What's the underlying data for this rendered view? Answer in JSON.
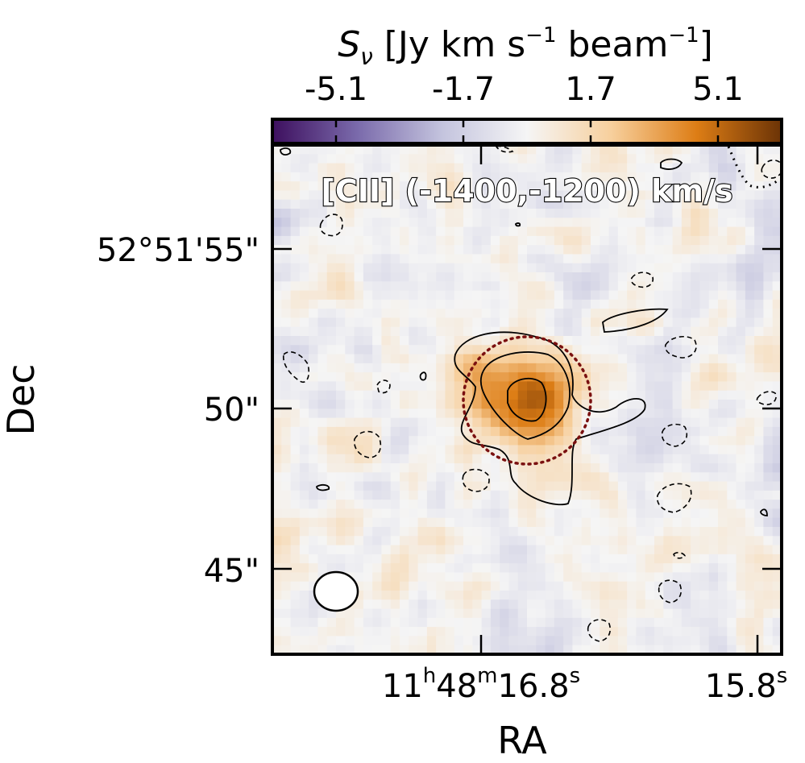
{
  "chart_data": {
    "type": "heatmap",
    "title": "",
    "annotation": "[CII] (-1400,-1200) km/s",
    "xlabel": "RA",
    "ylabel": "Dec",
    "colorbar": {
      "label": "S_ν [Jy km s^-1 beam^-1]",
      "label_main": "S",
      "label_sub": "ν",
      "label_rest_1": " [Jy km s",
      "label_sup_1": "−1",
      "label_rest_2": " beam",
      "label_sup_2": "−1",
      "label_rest_3": "]",
      "range": [
        -6.8,
        6.8
      ],
      "ticks": [
        -5.1,
        -1.7,
        1.7,
        5.1
      ],
      "tick_labels": [
        "-5.1",
        "-1.7",
        "1.7",
        "5.1"
      ],
      "placement": "top",
      "colormap": [
        "#3d0f5e",
        "#7a6aab",
        "#c4c4de",
        "#f5f5f5",
        "#f7cf9c",
        "#dd7d15",
        "#6b3306"
      ]
    },
    "x_ticks": [
      {
        "value": "11h48m16.8s",
        "h": "11",
        "m": "48",
        "s": "16.8",
        "sup_h": "h",
        "sup_m": "m",
        "sup_s": "s"
      },
      {
        "value": "15.8s",
        "s": "15.8",
        "sup_s": "s"
      }
    ],
    "y_ticks": [
      {
        "label": "52°51'55\""
      },
      {
        "label": "50\""
      },
      {
        "label": "45\""
      }
    ],
    "source": {
      "peak_value": 5.5,
      "ra_offset_arcsec": 0.0,
      "dec_offset_arcsec": 0.4
    },
    "aperture_style": "dotted",
    "aperture_color": "#7a1010",
    "contour_levels": [
      -2,
      2,
      3,
      4
    ],
    "beam_shape": "ellipse"
  }
}
